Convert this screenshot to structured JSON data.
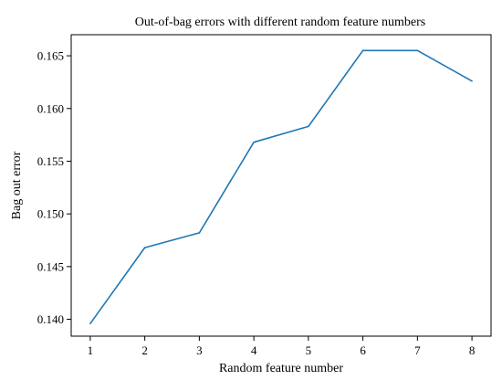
{
  "chart_data": {
    "type": "line",
    "title": "Out-of-bag errors with different random feature numbers",
    "xlabel": "Random feature number",
    "ylabel": "Bag out error",
    "x": [
      1,
      2,
      3,
      4,
      5,
      6,
      7,
      8
    ],
    "series": [
      {
        "values": [
          0.1396,
          0.1468,
          0.1482,
          0.1568,
          0.1583,
          0.1655,
          0.1655,
          0.1626
        ],
        "color": "#1f77b4"
      }
    ],
    "xlim": [
      0.65,
      8.35
    ],
    "ylim": [
      0.1384,
      0.167
    ],
    "xticks": [
      "1",
      "2",
      "3",
      "4",
      "5",
      "6",
      "7",
      "8"
    ],
    "yticks": [
      "0.140",
      "0.145",
      "0.150",
      "0.155",
      "0.160",
      "0.165"
    ],
    "grid": false,
    "legend": "none"
  }
}
